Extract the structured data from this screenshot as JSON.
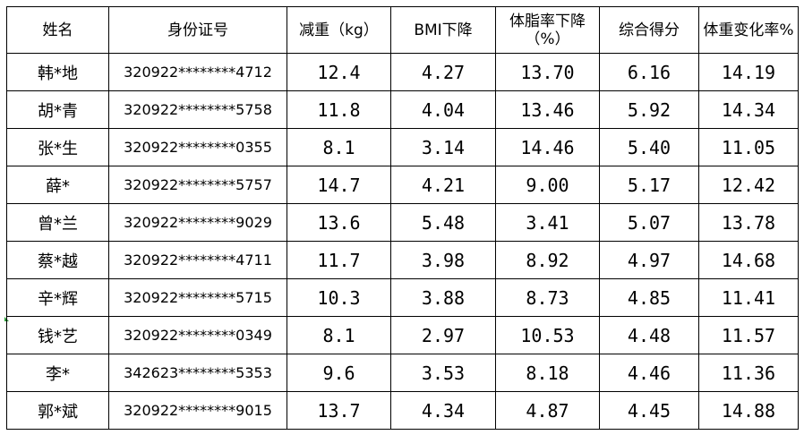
{
  "table": {
    "headers": {
      "name": "姓名",
      "id": "身份证号",
      "weight_loss": "减重（kg）",
      "bmi_drop": "BMI下降",
      "body_fat_drop": "体脂率下降（%）",
      "score": "综合得分",
      "weight_change_rate": "体重变化率%"
    },
    "rows": [
      {
        "name": "韩*地",
        "id": "320922********4712",
        "weight_loss": "12.4",
        "bmi_drop": "4.27",
        "body_fat_drop": "13.70",
        "score": "6.16",
        "weight_change_rate": "14.19"
      },
      {
        "name": "胡*青",
        "id": "320922********5758",
        "weight_loss": "11.8",
        "bmi_drop": "4.04",
        "body_fat_drop": "13.46",
        "score": "5.92",
        "weight_change_rate": "14.34"
      },
      {
        "name": "张*生",
        "id": "320922********0355",
        "weight_loss": "8.1",
        "bmi_drop": "3.14",
        "body_fat_drop": "14.46",
        "score": "5.40",
        "weight_change_rate": "11.05"
      },
      {
        "name": "薛*",
        "id": "320922********5757",
        "weight_loss": "14.7",
        "bmi_drop": "4.21",
        "body_fat_drop": "9.00",
        "score": "5.17",
        "weight_change_rate": "12.42"
      },
      {
        "name": "曾*兰",
        "id": "320922********9029",
        "weight_loss": "13.6",
        "bmi_drop": "5.48",
        "body_fat_drop": "3.41",
        "score": "5.07",
        "weight_change_rate": "13.78"
      },
      {
        "name": "蔡*越",
        "id": "320922********4711",
        "weight_loss": "11.7",
        "bmi_drop": "3.98",
        "body_fat_drop": "8.92",
        "score": "4.97",
        "weight_change_rate": "14.68"
      },
      {
        "name": "辛*辉",
        "id": "320922********5715",
        "weight_loss": "10.3",
        "bmi_drop": "3.88",
        "body_fat_drop": "8.73",
        "score": "4.85",
        "weight_change_rate": "11.41"
      },
      {
        "name": "钱*艺",
        "id": "320922********0349",
        "weight_loss": "8.1",
        "bmi_drop": "2.97",
        "body_fat_drop": "10.53",
        "score": "4.48",
        "weight_change_rate": "11.57"
      },
      {
        "name": "李*",
        "id": "342623********5353",
        "weight_loss": "9.6",
        "bmi_drop": "3.53",
        "body_fat_drop": "8.18",
        "score": "4.46",
        "weight_change_rate": "11.36"
      },
      {
        "name": "郭*斌",
        "id": "320922********9015",
        "weight_loss": "13.7",
        "bmi_drop": "4.34",
        "body_fat_drop": "4.87",
        "score": "4.45",
        "weight_change_rate": "14.88"
      }
    ]
  },
  "colors": {
    "border": "#000000",
    "text": "#000000",
    "corner_mark": "#2e9c3a"
  }
}
